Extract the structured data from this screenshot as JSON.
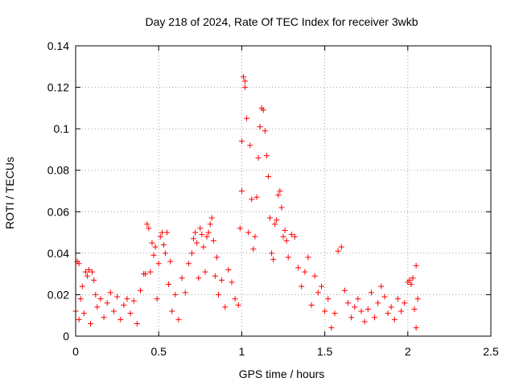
{
  "chart_data": {
    "type": "scatter",
    "title": "Day 218 of 2024, Rate Of TEC Index for receiver 3wkb",
    "xlabel": "GPS time / hours",
    "ylabel": "ROTI / TECUs",
    "xlim": [
      0,
      2.5
    ],
    "ylim": [
      0,
      0.14
    ],
    "xticks": [
      0,
      0.5,
      1,
      1.5,
      2,
      2.5
    ],
    "xtick_labels": [
      "0",
      "0.5",
      "1",
      "1.5",
      "2",
      "2.5"
    ],
    "yticks": [
      0,
      0.02,
      0.04,
      0.06,
      0.08,
      0.1,
      0.12,
      0.14
    ],
    "ytick_labels": [
      "0",
      "0.02",
      "0.04",
      "0.06",
      "0.08",
      "0.1",
      "0.12",
      "0.14"
    ],
    "grid": true,
    "marker": "+",
    "color": "#ff0000",
    "series": [
      {
        "name": "ROTI",
        "points": [
          [
            0.0,
            0.012
          ],
          [
            0.01,
            0.036
          ],
          [
            0.02,
            0.035
          ],
          [
            0.02,
            0.008
          ],
          [
            0.03,
            0.018
          ],
          [
            0.04,
            0.024
          ],
          [
            0.05,
            0.011
          ],
          [
            0.06,
            0.031
          ],
          [
            0.07,
            0.029
          ],
          [
            0.08,
            0.032
          ],
          [
            0.09,
            0.006
          ],
          [
            0.1,
            0.031
          ],
          [
            0.11,
            0.027
          ],
          [
            0.12,
            0.02
          ],
          [
            0.13,
            0.014
          ],
          [
            0.15,
            0.018
          ],
          [
            0.17,
            0.009
          ],
          [
            0.19,
            0.016
          ],
          [
            0.21,
            0.021
          ],
          [
            0.23,
            0.012
          ],
          [
            0.25,
            0.019
          ],
          [
            0.27,
            0.008
          ],
          [
            0.29,
            0.015
          ],
          [
            0.31,
            0.018
          ],
          [
            0.33,
            0.011
          ],
          [
            0.35,
            0.017
          ],
          [
            0.37,
            0.006
          ],
          [
            0.39,
            0.022
          ],
          [
            0.41,
            0.03
          ],
          [
            0.42,
            0.03
          ],
          [
            0.43,
            0.054
          ],
          [
            0.44,
            0.052
          ],
          [
            0.45,
            0.031
          ],
          [
            0.46,
            0.045
          ],
          [
            0.47,
            0.039
          ],
          [
            0.48,
            0.043
          ],
          [
            0.49,
            0.018
          ],
          [
            0.5,
            0.035
          ],
          [
            0.51,
            0.048
          ],
          [
            0.52,
            0.05
          ],
          [
            0.53,
            0.044
          ],
          [
            0.54,
            0.04
          ],
          [
            0.55,
            0.05
          ],
          [
            0.56,
            0.025
          ],
          [
            0.57,
            0.036
          ],
          [
            0.58,
            0.012
          ],
          [
            0.6,
            0.02
          ],
          [
            0.62,
            0.008
          ],
          [
            0.64,
            0.028
          ],
          [
            0.66,
            0.021
          ],
          [
            0.68,
            0.035
          ],
          [
            0.7,
            0.04
          ],
          [
            0.71,
            0.047
          ],
          [
            0.72,
            0.05
          ],
          [
            0.73,
            0.045
          ],
          [
            0.74,
            0.028
          ],
          [
            0.75,
            0.052
          ],
          [
            0.76,
            0.049
          ],
          [
            0.77,
            0.043
          ],
          [
            0.78,
            0.031
          ],
          [
            0.79,
            0.048
          ],
          [
            0.8,
            0.05
          ],
          [
            0.81,
            0.054
          ],
          [
            0.82,
            0.057
          ],
          [
            0.83,
            0.046
          ],
          [
            0.84,
            0.029
          ],
          [
            0.85,
            0.038
          ],
          [
            0.86,
            0.02
          ],
          [
            0.88,
            0.027
          ],
          [
            0.9,
            0.014
          ],
          [
            0.92,
            0.032
          ],
          [
            0.94,
            0.026
          ],
          [
            0.96,
            0.018
          ],
          [
            0.98,
            0.015
          ],
          [
            0.99,
            0.052
          ],
          [
            1.0,
            0.07
          ],
          [
            1.0,
            0.094
          ],
          [
            1.01,
            0.125
          ],
          [
            1.02,
            0.12
          ],
          [
            1.02,
            0.123
          ],
          [
            1.03,
            0.105
          ],
          [
            1.04,
            0.05
          ],
          [
            1.05,
            0.092
          ],
          [
            1.06,
            0.066
          ],
          [
            1.07,
            0.042
          ],
          [
            1.08,
            0.048
          ],
          [
            1.09,
            0.067
          ],
          [
            1.1,
            0.086
          ],
          [
            1.11,
            0.101
          ],
          [
            1.12,
            0.11
          ],
          [
            1.13,
            0.109
          ],
          [
            1.14,
            0.099
          ],
          [
            1.15,
            0.087
          ],
          [
            1.16,
            0.077
          ],
          [
            1.17,
            0.057
          ],
          [
            1.18,
            0.04
          ],
          [
            1.19,
            0.037
          ],
          [
            1.2,
            0.054
          ],
          [
            1.21,
            0.056
          ],
          [
            1.22,
            0.068
          ],
          [
            1.23,
            0.07
          ],
          [
            1.24,
            0.062
          ],
          [
            1.25,
            0.048
          ],
          [
            1.26,
            0.051
          ],
          [
            1.27,
            0.046
          ],
          [
            1.28,
            0.038
          ],
          [
            1.3,
            0.049
          ],
          [
            1.32,
            0.048
          ],
          [
            1.34,
            0.033
          ],
          [
            1.36,
            0.024
          ],
          [
            1.38,
            0.031
          ],
          [
            1.4,
            0.038
          ],
          [
            1.42,
            0.015
          ],
          [
            1.44,
            0.029
          ],
          [
            1.46,
            0.021
          ],
          [
            1.48,
            0.024
          ],
          [
            1.5,
            0.012
          ],
          [
            1.52,
            0.018
          ],
          [
            1.54,
            0.004
          ],
          [
            1.56,
            0.011
          ],
          [
            1.58,
            0.041
          ],
          [
            1.6,
            0.043
          ],
          [
            1.62,
            0.022
          ],
          [
            1.64,
            0.016
          ],
          [
            1.66,
            0.009
          ],
          [
            1.68,
            0.014
          ],
          [
            1.7,
            0.018
          ],
          [
            1.72,
            0.012
          ],
          [
            1.74,
            0.007
          ],
          [
            1.76,
            0.013
          ],
          [
            1.78,
            0.021
          ],
          [
            1.8,
            0.009
          ],
          [
            1.82,
            0.016
          ],
          [
            1.84,
            0.024
          ],
          [
            1.86,
            0.019
          ],
          [
            1.88,
            0.011
          ],
          [
            1.9,
            0.014
          ],
          [
            1.92,
            0.008
          ],
          [
            1.94,
            0.018
          ],
          [
            1.96,
            0.012
          ],
          [
            1.98,
            0.016
          ],
          [
            2.0,
            0.026
          ],
          [
            2.01,
            0.027
          ],
          [
            2.02,
            0.025
          ],
          [
            2.03,
            0.028
          ],
          [
            2.04,
            0.013
          ],
          [
            2.05,
            0.034
          ],
          [
            2.05,
            0.004
          ],
          [
            2.06,
            0.018
          ]
        ]
      }
    ]
  }
}
